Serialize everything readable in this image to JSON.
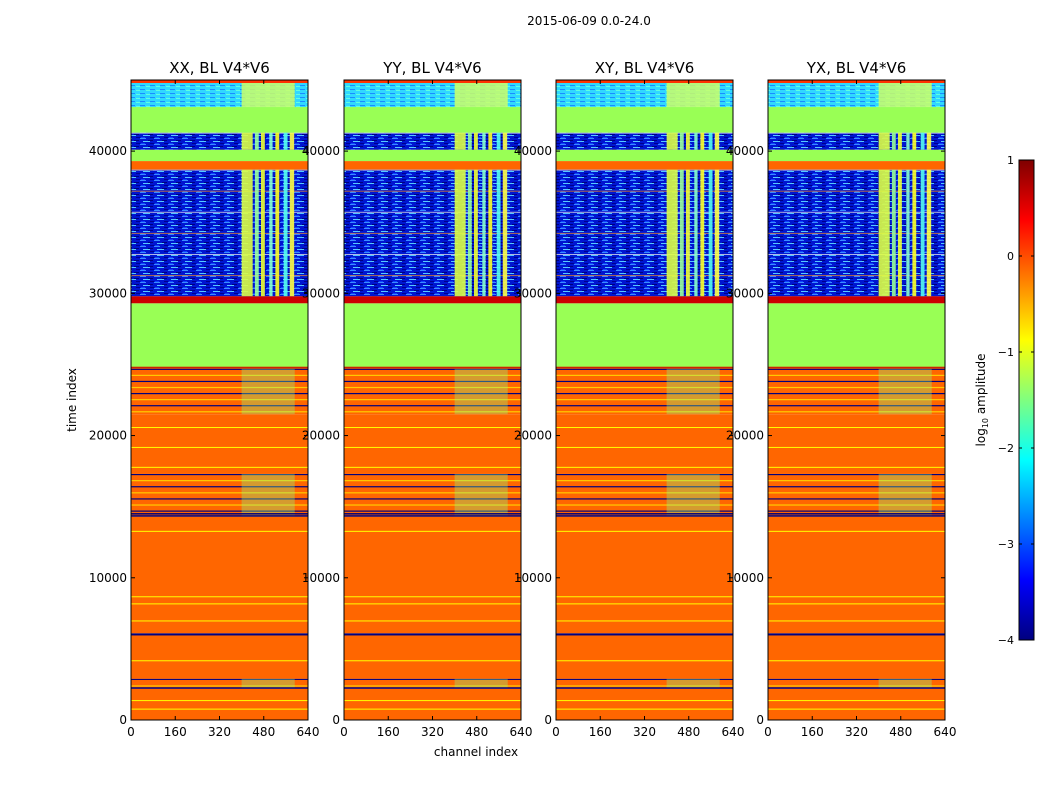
{
  "chart_data": {
    "type": "heatmap",
    "suptitle": "2015-06-09 0.0-24.0",
    "xlabel": "channel index",
    "ylabel": "time index",
    "xlim": [
      0,
      640
    ],
    "ylim": [
      0,
      45000
    ],
    "xticks": [
      0,
      160,
      320,
      480,
      640
    ],
    "yticks": [
      0,
      10000,
      20000,
      30000,
      40000
    ],
    "panels": [
      {
        "title": "XX, BL V4*V6"
      },
      {
        "title": "YY, BL V4*V6"
      },
      {
        "title": "XY, BL V4*V6"
      },
      {
        "title": "YX, BL V4*V6"
      }
    ],
    "colorbar": {
      "label": "log",
      "label_sub": "10",
      "label_suffix": " amplitude",
      "range": [
        -4,
        1
      ],
      "ticks": [
        1,
        0,
        -1,
        -2,
        -3,
        -4
      ],
      "tick_labels": [
        "1",
        "0",
        "−1",
        "−2",
        "−3",
        "−4"
      ],
      "colormap": "jet"
    },
    "bands": [
      {
        "y0": 0,
        "y1": 2200,
        "level": "orange"
      },
      {
        "y0": 2200,
        "y1": 2900,
        "level": "mixed-low"
      },
      {
        "y0": 2900,
        "y1": 6000,
        "level": "orange"
      },
      {
        "y0": 6000,
        "y1": 6100,
        "level": "dark"
      },
      {
        "y0": 6100,
        "y1": 14300,
        "level": "orange"
      },
      {
        "y0": 14300,
        "y1": 17300,
        "level": "mixed-low"
      },
      {
        "y0": 17300,
        "y1": 21500,
        "level": "orange"
      },
      {
        "y0": 21500,
        "y1": 24700,
        "level": "mixed-low"
      },
      {
        "y0": 24700,
        "y1": 29300,
        "level": "green"
      },
      {
        "y0": 29300,
        "y1": 29800,
        "level": "red-lines"
      },
      {
        "y0": 29800,
        "y1": 38700,
        "level": "blue-noise"
      },
      {
        "y0": 38700,
        "y1": 39300,
        "level": "orange"
      },
      {
        "y0": 39300,
        "y1": 40100,
        "level": "green"
      },
      {
        "y0": 40100,
        "y1": 41300,
        "level": "blue-noise"
      },
      {
        "y0": 41300,
        "y1": 43100,
        "level": "green"
      },
      {
        "y0": 43100,
        "y1": 45000,
        "level": "blue-cyan"
      }
    ]
  }
}
